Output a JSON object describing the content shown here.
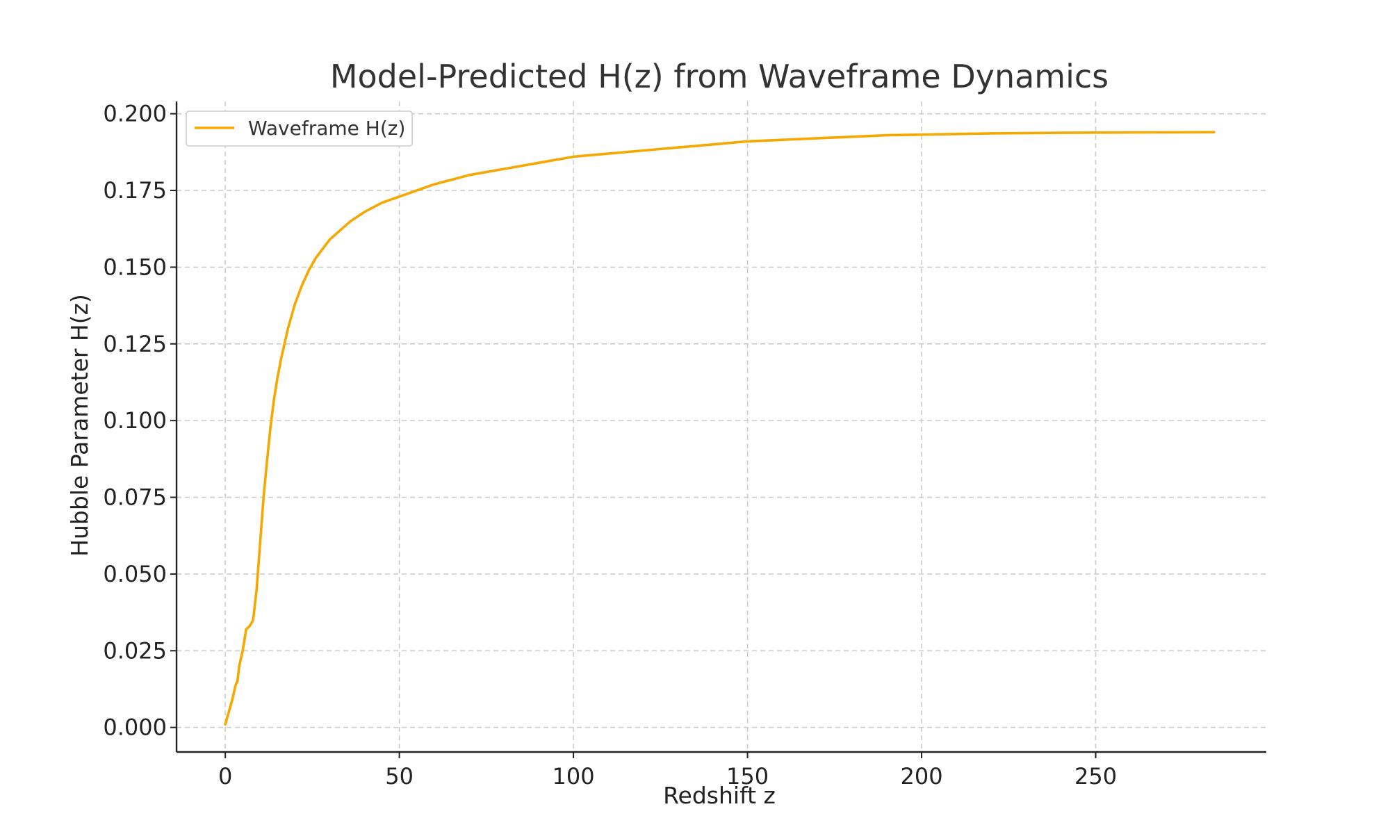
{
  "chart_data": {
    "type": "line",
    "title": "Model-Predicted H(z) from Waveframe Dynamics",
    "xlabel": "Redshift z",
    "ylabel": "Hubble Parameter H(z)",
    "xlim": [
      -14,
      299
    ],
    "ylim": [
      -0.008,
      0.204
    ],
    "xticks": [
      0,
      50,
      100,
      150,
      200,
      250
    ],
    "yticks": [
      0.0,
      0.025,
      0.05,
      0.075,
      0.1,
      0.125,
      0.15,
      0.175,
      0.2
    ],
    "xtick_labels": [
      "0",
      "50",
      "100",
      "150",
      "200",
      "250"
    ],
    "ytick_labels": [
      "0.000",
      "0.025",
      "0.050",
      "0.075",
      "0.100",
      "0.125",
      "0.150",
      "0.175",
      "0.200"
    ],
    "grid": true,
    "legend_position": "top-left",
    "series": [
      {
        "name": "Waveframe H(z)",
        "color": "#f5a800",
        "x": [
          0,
          1,
          2,
          3,
          3.5,
          4,
          5,
          6,
          7,
          8,
          9,
          10,
          11,
          12,
          13,
          14,
          15,
          16,
          17,
          18,
          19,
          20,
          22,
          24,
          26,
          28,
          30,
          33,
          36,
          40,
          45,
          50,
          55,
          60,
          70,
          80,
          90,
          100,
          110,
          120,
          130,
          140,
          150,
          160,
          170,
          180,
          190,
          200,
          220,
          240,
          260,
          284
        ],
        "y": [
          0.001,
          0.005,
          0.009,
          0.014,
          0.015,
          0.02,
          0.025,
          0.032,
          0.033,
          0.035,
          0.045,
          0.06,
          0.075,
          0.087,
          0.098,
          0.107,
          0.114,
          0.12,
          0.125,
          0.13,
          0.134,
          0.138,
          0.144,
          0.149,
          0.153,
          0.156,
          0.159,
          0.162,
          0.165,
          0.168,
          0.171,
          0.173,
          0.175,
          0.177,
          0.18,
          0.182,
          0.184,
          0.186,
          0.187,
          0.188,
          0.189,
          0.19,
          0.191,
          0.1915,
          0.192,
          0.1925,
          0.193,
          0.1932,
          0.1936,
          0.1938,
          0.1939,
          0.194
        ]
      }
    ]
  }
}
